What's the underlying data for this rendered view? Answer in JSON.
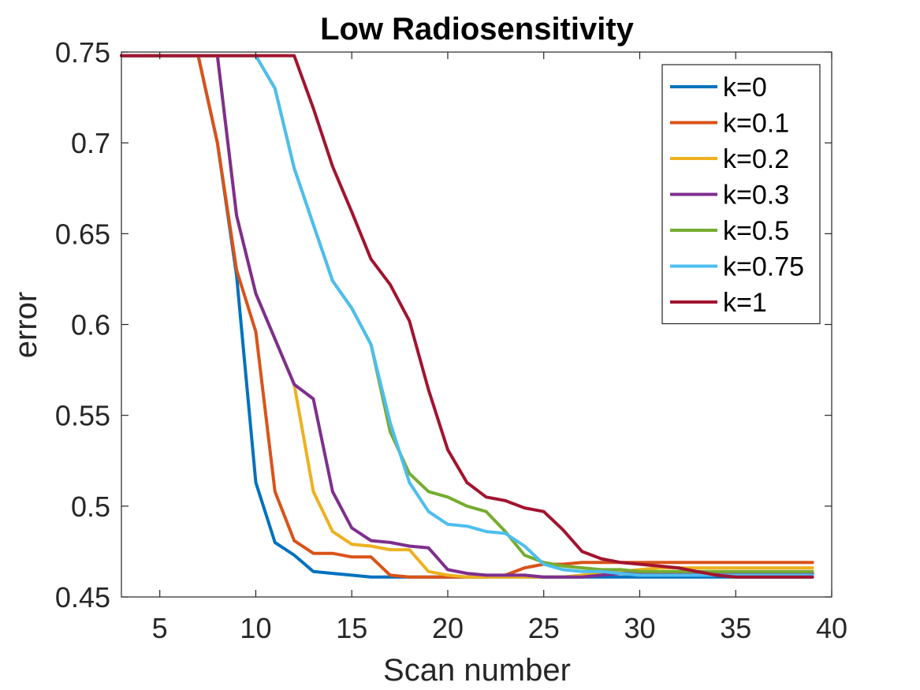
{
  "chart_data": {
    "type": "line",
    "title": "Low Radiosensitivity",
    "xlabel": "Scan number",
    "ylabel": "error",
    "xlim": [
      3,
      40
    ],
    "ylim": [
      0.45,
      0.75
    ],
    "xticks": [
      5,
      10,
      15,
      20,
      25,
      30,
      35,
      40
    ],
    "yticks": [
      0.45,
      0.5,
      0.55,
      0.6,
      0.65,
      0.7,
      0.75
    ],
    "xtick_labels": [
      "5",
      "10",
      "15",
      "20",
      "25",
      "30",
      "35",
      "40"
    ],
    "ytick_labels": [
      "0.45",
      "0.5",
      "0.55",
      "0.6",
      "0.65",
      "0.7",
      "0.75"
    ],
    "grid": false,
    "legend_location": "top-right",
    "x": [
      3,
      4,
      5,
      6,
      7,
      8,
      9,
      10,
      11,
      12,
      13,
      14,
      15,
      16,
      17,
      18,
      19,
      20,
      21,
      22,
      23,
      24,
      25,
      26,
      27,
      28,
      29,
      30,
      31,
      32,
      33,
      34,
      35,
      36,
      37,
      38,
      39
    ],
    "series": [
      {
        "name": "k=0",
        "color": "#0072BD",
        "values": [
          0.748,
          0.748,
          0.748,
          0.748,
          0.748,
          0.7,
          0.627,
          0.513,
          0.48,
          0.473,
          0.464,
          0.463,
          0.462,
          0.461,
          0.461,
          0.461,
          0.461,
          0.461,
          0.461,
          0.461,
          0.461,
          0.461,
          0.461,
          0.461,
          0.461,
          0.461,
          0.461,
          0.461,
          0.461,
          0.461,
          0.461,
          0.461,
          0.461,
          0.461,
          0.461,
          0.461,
          0.461
        ]
      },
      {
        "name": "k=0.1",
        "color": "#D95319",
        "values": [
          0.748,
          0.748,
          0.748,
          0.748,
          0.748,
          0.7,
          0.63,
          0.596,
          0.508,
          0.481,
          0.474,
          0.474,
          0.472,
          0.472,
          0.462,
          0.461,
          0.461,
          0.461,
          0.461,
          0.461,
          0.462,
          0.466,
          0.468,
          0.468,
          0.469,
          0.469,
          0.469,
          0.469,
          0.469,
          0.469,
          0.469,
          0.469,
          0.469,
          0.469,
          0.469,
          0.469,
          0.469
        ]
      },
      {
        "name": "k=0.2",
        "color": "#EDB120",
        "values": [
          0.748,
          0.748,
          0.748,
          0.748,
          0.748,
          0.748,
          0.66,
          0.617,
          0.592,
          0.567,
          0.508,
          0.486,
          0.479,
          0.478,
          0.476,
          0.476,
          0.464,
          0.462,
          0.461,
          0.461,
          0.461,
          0.461,
          0.461,
          0.461,
          0.462,
          0.463,
          0.464,
          0.465,
          0.466,
          0.466,
          0.466,
          0.466,
          0.466,
          0.466,
          0.466,
          0.466,
          0.466
        ]
      },
      {
        "name": "k=0.3",
        "color": "#7E2F8E",
        "values": [
          0.748,
          0.748,
          0.748,
          0.748,
          0.748,
          0.748,
          0.66,
          0.617,
          0.592,
          0.567,
          0.559,
          0.508,
          0.488,
          0.481,
          0.48,
          0.478,
          0.477,
          0.465,
          0.463,
          0.462,
          0.462,
          0.462,
          0.461,
          0.461,
          0.461,
          0.462,
          0.463,
          0.463,
          0.463,
          0.463,
          0.463,
          0.463,
          0.463,
          0.463,
          0.463,
          0.463,
          0.463
        ]
      },
      {
        "name": "k=0.5",
        "color": "#77AC30",
        "values": [
          0.748,
          0.748,
          0.748,
          0.748,
          0.748,
          0.748,
          0.748,
          0.748,
          0.73,
          0.686,
          0.655,
          0.624,
          0.609,
          0.589,
          0.541,
          0.518,
          0.508,
          0.505,
          0.5,
          0.497,
          0.486,
          0.473,
          0.469,
          0.467,
          0.466,
          0.465,
          0.465,
          0.464,
          0.464,
          0.464,
          0.464,
          0.464,
          0.464,
          0.464,
          0.464,
          0.464,
          0.464
        ]
      },
      {
        "name": "k=0.75",
        "color": "#4DBEEE",
        "values": [
          0.748,
          0.748,
          0.748,
          0.748,
          0.748,
          0.748,
          0.748,
          0.748,
          0.73,
          0.686,
          0.655,
          0.624,
          0.609,
          0.589,
          0.546,
          0.513,
          0.497,
          0.49,
          0.489,
          0.486,
          0.485,
          0.478,
          0.468,
          0.465,
          0.464,
          0.464,
          0.463,
          0.462,
          0.462,
          0.462,
          0.462,
          0.462,
          0.462,
          0.462,
          0.462,
          0.462,
          0.462
        ]
      },
      {
        "name": "k=1",
        "color": "#A2142F",
        "values": [
          0.748,
          0.748,
          0.748,
          0.748,
          0.748,
          0.748,
          0.748,
          0.748,
          0.748,
          0.748,
          0.719,
          0.687,
          0.662,
          0.636,
          0.622,
          0.602,
          0.564,
          0.531,
          0.513,
          0.505,
          0.503,
          0.499,
          0.497,
          0.487,
          0.475,
          0.471,
          0.469,
          0.468,
          0.467,
          0.466,
          0.464,
          0.462,
          0.461,
          0.461,
          0.461,
          0.461,
          0.461
        ]
      }
    ]
  }
}
